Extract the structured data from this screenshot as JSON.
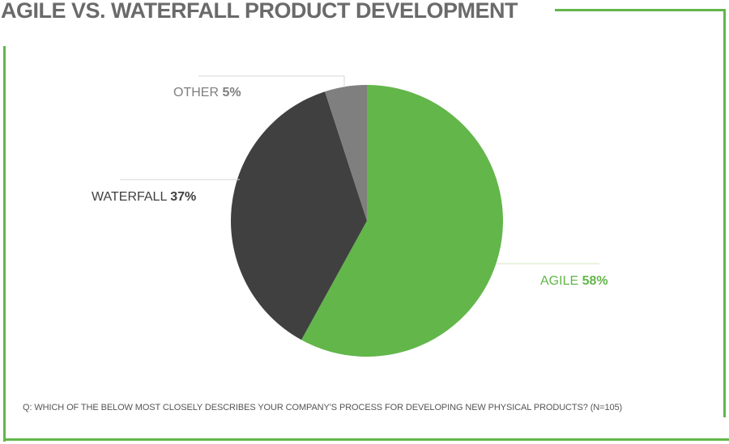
{
  "page": {
    "title": "AGILE VS. WATERFALL PRODUCT DEVELOPMENT",
    "footnote": "Q: WHICH OF THE BELOW MOST CLOSELY DESCRIBES YOUR COMPANY'S PROCESS FOR DEVELOPING NEW PHYSICAL PRODUCTS? (N=105)",
    "accent_color": "#62b64a"
  },
  "chart_data": {
    "type": "pie",
    "title": "AGILE VS. WATERFALL PRODUCT DEVELOPMENT",
    "note": "Q: WHICH OF THE BELOW MOST CLOSELY DESCRIBES YOUR COMPANY'S PROCESS FOR DEVELOPING NEW PHYSICAL PRODUCTS? (N=105)",
    "n": 105,
    "start": "12 o'clock, clockwise",
    "slices": [
      {
        "label": "AGILE",
        "value": 58,
        "value_label": "58%",
        "color": "#62b64a",
        "label_color": "#62b64a"
      },
      {
        "label": "WATERFALL",
        "value": 37,
        "value_label": "37%",
        "color": "#404040",
        "label_color": "#404040"
      },
      {
        "label": "OTHER",
        "value": 5,
        "value_label": "5%",
        "color": "#7f7f7f",
        "label_color": "#7f7f7f"
      }
    ]
  }
}
